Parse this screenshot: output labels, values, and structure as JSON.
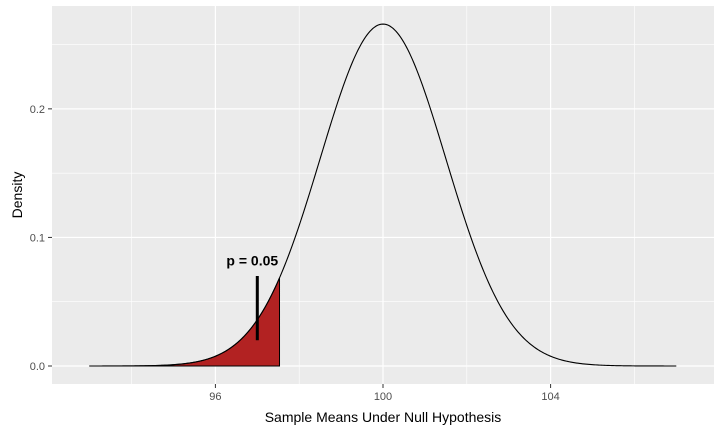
{
  "chart_data": {
    "type": "area",
    "title": "",
    "xlabel": "Sample Means Under Null Hypothesis",
    "ylabel": "Density",
    "distribution": {
      "family": "normal",
      "mean": 100,
      "sd": 1.5
    },
    "xlim": [
      92.1,
      107.9
    ],
    "ylim": [
      -0.014,
      0.28
    ],
    "x_ticks": [
      {
        "value": 96,
        "label": "96"
      },
      {
        "value": 100,
        "label": "100"
      },
      {
        "value": 104,
        "label": "104"
      }
    ],
    "x_minor_ticks": [
      94,
      98,
      102,
      106
    ],
    "y_ticks": [
      {
        "value": 0.0,
        "label": "0.0"
      },
      {
        "value": 0.1,
        "label": "0.1"
      },
      {
        "value": 0.2,
        "label": "0.2"
      }
    ],
    "y_minor_ticks": [
      0.05,
      0.15,
      0.25
    ],
    "curve_range": [
      93,
      107
    ],
    "shaded_region": {
      "from": 93,
      "to": 97.53,
      "color": "#b22222"
    },
    "annotation": {
      "text": "p = 0.05",
      "x": 97,
      "y_low": 0.02,
      "y_high": 0.07,
      "label_y": 0.078
    },
    "colors": {
      "panel": "#ebebeb",
      "grid": "#ffffff",
      "curve": "#000000"
    },
    "grid": true,
    "legend": "none"
  }
}
